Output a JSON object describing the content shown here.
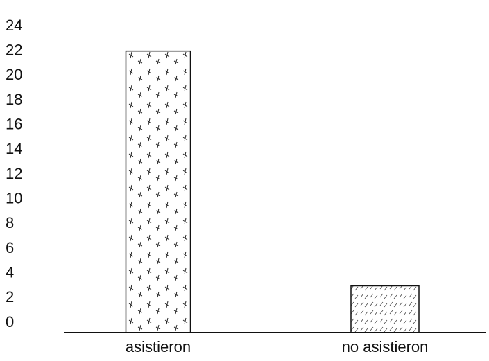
{
  "chart_data": {
    "type": "bar",
    "categories": [
      "asistieron",
      "no asistieron"
    ],
    "values": [
      22,
      3
    ],
    "ylim": [
      0,
      24
    ],
    "yticks": [
      0,
      2,
      4,
      6,
      8,
      10,
      12,
      14,
      16,
      18,
      20,
      22,
      24
    ],
    "grid": false
  }
}
